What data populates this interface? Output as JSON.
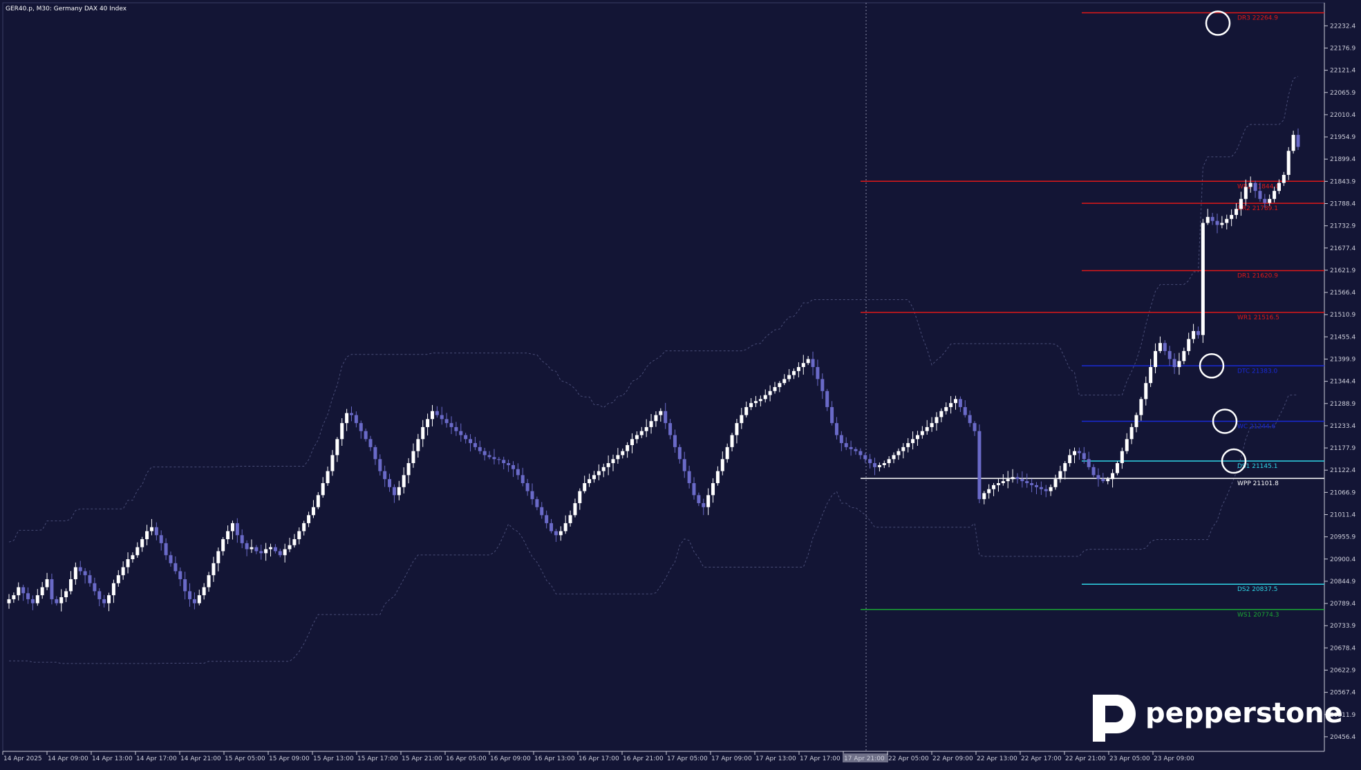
{
  "header": {
    "symbol_text": "GER40.p, M30:  Germany DAX 40 Index"
  },
  "brand": {
    "logo_text": "pepperstone",
    "logo_color": "#ffffff"
  },
  "colors": {
    "background": "#131535",
    "candle_up": "#ffffff",
    "candle_down": "#6a6ac8",
    "envelope": "#4a4e78",
    "separator": "#8a8aa8",
    "axis_text": "#cfd0dc"
  },
  "chart_data": {
    "type": "candlestick",
    "title": "GER40.p, M30:  Germany DAX 40 Index",
    "ylim": [
      20420.0,
      22290.0
    ],
    "y_ticks": [
      22232.4,
      22176.9,
      22121.4,
      22065.9,
      22010.4,
      21954.9,
      21899.4,
      21843.9,
      21788.4,
      21732.9,
      21677.4,
      21621.9,
      21566.4,
      21510.9,
      21455.4,
      21399.9,
      21344.4,
      21288.9,
      21233.4,
      21177.9,
      21122.4,
      21066.9,
      21011.4,
      20955.9,
      20900.4,
      20844.9,
      20789.4,
      20733.9,
      20678.4,
      20622.9,
      20567.4,
      20511.9,
      20456.4
    ],
    "x_labels": [
      "14 Apr 2025",
      "14 Apr 09:00",
      "14 Apr 13:00",
      "14 Apr 17:00",
      "14 Apr 21:00",
      "15 Apr 05:00",
      "15 Apr 09:00",
      "15 Apr 13:00",
      "15 Apr 17:00",
      "15 Apr 21:00",
      "16 Apr 05:00",
      "16 Apr 09:00",
      "16 Apr 13:00",
      "16 Apr 17:00",
      "16 Apr 21:00",
      "17 Apr 05:00",
      "17 Apr 09:00",
      "17 Apr 13:00",
      "17 Apr 17:00",
      "17 Apr 21:00",
      "22 Apr 05:00",
      "22 Apr 09:00",
      "22 Apr 13:00",
      "22 Apr 17:00",
      "22 Apr 21:00",
      "23 Apr 05:00",
      "23 Apr 09:00"
    ],
    "x_highlight_label": "17 Apr 21:00",
    "close_series": [
      20800,
      20810,
      20830,
      20815,
      20800,
      20790,
      20810,
      20830,
      20850,
      20800,
      20790,
      20805,
      20820,
      20850,
      20880,
      20870,
      20860,
      20840,
      20820,
      20800,
      20790,
      20810,
      20840,
      20860,
      20880,
      20900,
      20910,
      20930,
      20950,
      20970,
      20980,
      20960,
      20940,
      20910,
      20890,
      20870,
      20850,
      20820,
      20800,
      20790,
      20810,
      20830,
      20860,
      20890,
      20920,
      20950,
      20970,
      20990,
      20960,
      20940,
      20925,
      20930,
      20920,
      20915,
      20925,
      20930,
      20920,
      20910,
      20925,
      20935,
      20950,
      20970,
      20990,
      21010,
      21030,
      21060,
      21090,
      21120,
      21160,
      21200,
      21240,
      21265,
      21260,
      21240,
      21220,
      21200,
      21180,
      21150,
      21120,
      21100,
      21080,
      21060,
      21080,
      21110,
      21140,
      21170,
      21200,
      21230,
      21250,
      21270,
      21260,
      21250,
      21240,
      21230,
      21220,
      21210,
      21200,
      21190,
      21180,
      21170,
      21160,
      21155,
      21150,
      21148,
      21140,
      21135,
      21125,
      21110,
      21090,
      21070,
      21050,
      21030,
      21010,
      20990,
      20970,
      20960,
      20970,
      20990,
      21010,
      21040,
      21070,
      21090,
      21100,
      21110,
      21120,
      21130,
      21140,
      21150,
      21160,
      21170,
      21185,
      21200,
      21210,
      21220,
      21230,
      21245,
      21260,
      21270,
      21240,
      21210,
      21180,
      21150,
      21120,
      21090,
      21060,
      21040,
      21030,
      21060,
      21090,
      21120,
      21150,
      21180,
      21210,
      21240,
      21260,
      21280,
      21290,
      21295,
      21300,
      21310,
      21320,
      21330,
      21340,
      21350,
      21360,
      21370,
      21380,
      21390,
      21400,
      21380,
      21350,
      21320,
      21280,
      21240,
      21210,
      21190,
      21180,
      21175,
      21170,
      21160,
      21150,
      21140,
      21130,
      21135,
      21140,
      21150,
      21160,
      21170,
      21180,
      21190,
      21200,
      21210,
      21220,
      21230,
      21240,
      21255,
      21270,
      21280,
      21290,
      21300,
      21280,
      21260,
      21240,
      21220,
      21050,
      21065,
      21075,
      21085,
      21090,
      21095,
      21100,
      21105,
      21100,
      21095,
      21090,
      21085,
      21080,
      21075,
      21070,
      21080,
      21100,
      21120,
      21140,
      21160,
      21170,
      21165,
      21150,
      21130,
      21110,
      21100,
      21095,
      21100,
      21115,
      21140,
      21170,
      21200,
      21230,
      21260,
      21300,
      21340,
      21380,
      21420,
      21440,
      21420,
      21400,
      21380,
      21395,
      21420,
      21450,
      21470,
      21460,
      21740,
      21755,
      21745,
      21735,
      21740,
      21750,
      21760,
      21775,
      21800,
      21830,
      21840,
      21820,
      21800,
      21790,
      21800,
      21820,
      21840,
      21860,
      21920,
      21960,
      21930
    ],
    "series": [
      {
        "name": "",
        "style": "envelope-upper"
      },
      {
        "name": "",
        "style": "envelope-lower"
      }
    ],
    "pivot_levels": [
      {
        "label": "DR3 22264.9",
        "value": 22264.9,
        "color": "#e01818",
        "scope": "day"
      },
      {
        "label": "WR2 21844.0",
        "value": 21844.0,
        "color": "#e01818",
        "scope": "week"
      },
      {
        "label": "DR2 21789.1",
        "value": 21789.1,
        "color": "#e01818",
        "scope": "day"
      },
      {
        "label": "DR1 21620.9",
        "value": 21620.9,
        "color": "#e01818",
        "scope": "day"
      },
      {
        "label": "WR1 21516.5",
        "value": 21516.5,
        "color": "#e01818",
        "scope": "week"
      },
      {
        "label": "DTC 21383.0",
        "value": 21383.0,
        "color": "#1a2ad8",
        "scope": "day"
      },
      {
        "label": "WC 21244.6",
        "value": 21244.6,
        "color": "#1a2ad8",
        "scope": "day"
      },
      {
        "label": "DS1 21145.1",
        "value": 21145.1,
        "color": "#2fd7e8",
        "scope": "day"
      },
      {
        "label": "WPP 21101.8",
        "value": 21101.8,
        "color": "#ffffff",
        "scope": "week"
      },
      {
        "label": "DS2 20837.5",
        "value": 20837.5,
        "color": "#2fd7e8",
        "scope": "day"
      },
      {
        "label": "WS1 20774.3",
        "value": 20774.3,
        "color": "#1aa833",
        "scope": "week"
      }
    ],
    "markers": [
      {
        "shape": "circle",
        "near": "DR3 22264.9"
      },
      {
        "shape": "circle",
        "near": "DTC 21383.0"
      },
      {
        "shape": "circle",
        "near": "WC 21244.6"
      },
      {
        "shape": "circle",
        "near": "DS1 21145.1"
      }
    ],
    "grid": false,
    "legend": "none"
  }
}
